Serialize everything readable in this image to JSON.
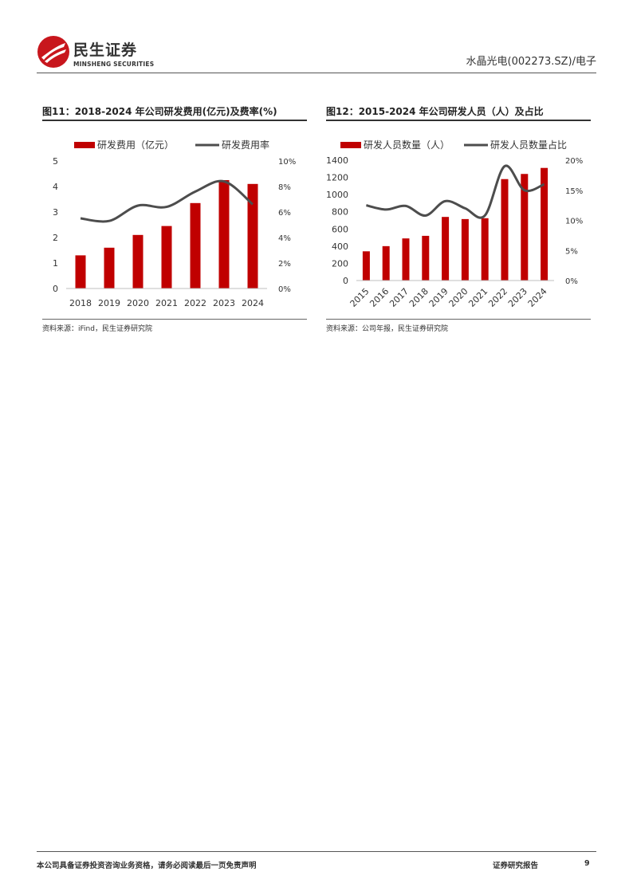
{
  "header": {
    "logo_cn": "民生证券",
    "logo_en": "MINSHENG SECURITIES",
    "right_text": "水晶光电(002273.SZ)/电子"
  },
  "figures": [
    {
      "title": "图11：2018-2024 年公司研发费用(亿元)及费率(%)",
      "source": "资料来源：iFind，民生证券研究院",
      "chart_data": {
        "type": "bar",
        "categories": [
          "2018",
          "2019",
          "2020",
          "2021",
          "2022",
          "2023",
          "2024"
        ],
        "series": [
          {
            "name": "研发费用（亿元）",
            "type": "bar",
            "axis": "left",
            "values": [
              1.3,
              1.6,
              2.1,
              2.45,
              3.35,
              4.25,
              4.1
            ]
          },
          {
            "name": "研发费用率",
            "type": "line",
            "axis": "right",
            "values": [
              5.5,
              5.3,
              6.5,
              6.4,
              7.6,
              8.4,
              6.6
            ]
          }
        ],
        "y_left": {
          "min": 0,
          "max": 5,
          "ticks": [
            "0",
            "1",
            "2",
            "3",
            "4",
            "5"
          ]
        },
        "y_right": {
          "min": 0,
          "max": 10,
          "ticks": [
            "0%",
            "2%",
            "4%",
            "6%",
            "8%",
            "10%"
          ]
        },
        "legend_position": "top",
        "grid": false,
        "colors": {
          "bar": "#C00000",
          "line": "#4D4D4D"
        }
      }
    },
    {
      "title": "图12：2015-2024 年公司研发人员（人）及占比",
      "source": "资料来源：公司年报，民生证券研究院",
      "chart_data": {
        "type": "bar",
        "categories": [
          "2015",
          "2016",
          "2017",
          "2018",
          "2019",
          "2020",
          "2021",
          "2022",
          "2023",
          "2024"
        ],
        "series": [
          {
            "name": "研发人员数量（人）",
            "type": "bar",
            "axis": "left",
            "values": [
              340,
              400,
              490,
              520,
              740,
              715,
              725,
              1180,
              1240,
              1310
            ]
          },
          {
            "name": "研发人员数量占比",
            "type": "line",
            "axis": "right",
            "values": [
              12.5,
              11.8,
              12.4,
              10.8,
              13.2,
              12.0,
              10.8,
              19.0,
              15.0,
              16.0
            ]
          }
        ],
        "y_left": {
          "min": 0,
          "max": 1400,
          "ticks": [
            "0",
            "200",
            "400",
            "600",
            "800",
            "1000",
            "1200",
            "1400"
          ]
        },
        "y_right": {
          "min": 0,
          "max": 20,
          "ticks": [
            "0%",
            "5%",
            "10%",
            "15%",
            "20%"
          ]
        },
        "legend_position": "top",
        "grid": false,
        "colors": {
          "bar": "#C00000",
          "line": "#4D4D4D"
        }
      }
    }
  ],
  "footer": {
    "left": "本公司具备证券投资咨询业务资格，请务必阅读最后一页免责声明",
    "right": "证券研究报告",
    "page": "9"
  }
}
